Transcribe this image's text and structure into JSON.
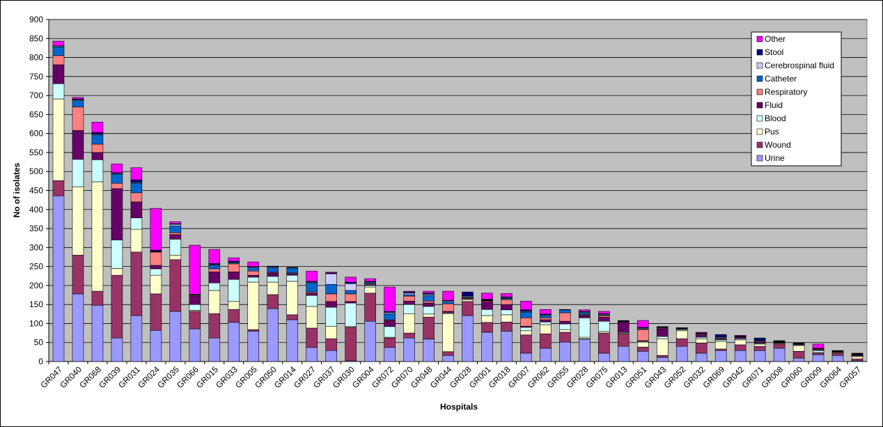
{
  "chart_data": {
    "type": "stacked-bar",
    "x_label": "Hospitals",
    "y_label": "No of isolates",
    "categories": [
      "GR047",
      "GR040",
      "GR068",
      "GR039",
      "GR031",
      "GR024",
      "GR035",
      "GR066",
      "GR015",
      "GR033",
      "GR005",
      "GR050",
      "GR014",
      "GR027",
      "GR037",
      "GR030",
      "GR004",
      "GR072",
      "GR070",
      "GR048",
      "GR044",
      "GR028",
      "GR001",
      "GR018",
      "GR007",
      "GR062",
      "GR055",
      "GR028",
      "GR075",
      "GR013",
      "GR051",
      "GR043",
      "GR052",
      "GR032",
      "GR069",
      "GR042",
      "GR071",
      "GR008",
      "GR060",
      "GR009",
      "GR064",
      "GR057"
    ],
    "series": [
      {
        "name": "Urine",
        "color": "#9999ff",
        "values": [
          436,
          178,
          148,
          62,
          121,
          82,
          132,
          86,
          62,
          103,
          80,
          139,
          110,
          37,
          29,
          2,
          106,
          37,
          62,
          59,
          16,
          121,
          77,
          80,
          22,
          35,
          51,
          59,
          22,
          40,
          27,
          11,
          40,
          22,
          29,
          29,
          29,
          35,
          9,
          18,
          16,
          2
        ]
      },
      {
        "name": "Wound",
        "color": "#993366",
        "values": [
          40,
          102,
          37,
          165,
          167,
          96,
          136,
          46,
          64,
          34,
          4,
          37,
          13,
          51,
          31,
          88,
          74,
          25,
          13,
          58,
          10,
          37,
          26,
          24,
          48,
          38,
          26,
          1,
          53,
          33,
          11,
          5,
          20,
          27,
          4,
          15,
          11,
          11,
          18,
          4,
          6,
          5
        ]
      },
      {
        "name": "Pus",
        "color": "#ffffcc",
        "values": [
          215,
          180,
          288,
          18,
          60,
          49,
          12,
          3,
          61,
          21,
          125,
          33,
          88,
          57,
          33,
          2,
          16,
          2,
          51,
          8,
          100,
          5,
          18,
          19,
          11,
          24,
          7,
          4,
          4,
          2,
          13,
          44,
          21,
          11,
          20,
          13,
          6,
          2,
          15,
          2,
          2,
          6
        ]
      },
      {
        "name": "Blood",
        "color": "#ccffff",
        "values": [
          40,
          72,
          58,
          75,
          30,
          17,
          42,
          15,
          20,
          58,
          13,
          15,
          16,
          29,
          50,
          62,
          4,
          28,
          24,
          20,
          2,
          2,
          16,
          13,
          9,
          7,
          15,
          51,
          27,
          2,
          2,
          6,
          3,
          4,
          4,
          3,
          2,
          1,
          2,
          5,
          1,
          2
        ]
      },
      {
        "name": "Fluid",
        "color": "#660066",
        "values": [
          50,
          76,
          19,
          135,
          42,
          9,
          12,
          22,
          29,
          20,
          5,
          9,
          4,
          6,
          15,
          4,
          2,
          16,
          9,
          9,
          4,
          2,
          21,
          14,
          3,
          6,
          7,
          6,
          11,
          27,
          2,
          20,
          1,
          6,
          2,
          4,
          3,
          2,
          2,
          2,
          1,
          2
        ]
      },
      {
        "name": "Respiratory",
        "color": "#ff8080",
        "values": [
          24,
          62,
          22,
          14,
          24,
          35,
          5,
          2,
          8,
          21,
          11,
          2,
          2,
          3,
          20,
          20,
          2,
          2,
          13,
          5,
          20,
          2,
          2,
          13,
          22,
          5,
          22,
          2,
          4,
          1,
          29,
          2,
          1,
          2,
          2,
          1,
          2,
          1,
          1,
          2,
          1,
          1
        ]
      },
      {
        "name": "Catheter",
        "color": "#0066cc",
        "values": [
          23,
          16,
          24,
          24,
          25,
          1,
          18,
          1,
          9,
          2,
          8,
          11,
          13,
          24,
          25,
          9,
          3,
          16,
          4,
          15,
          6,
          2,
          1,
          3,
          15,
          6,
          8,
          5,
          2,
          1,
          2,
          2,
          1,
          1,
          2,
          1,
          2,
          1,
          1,
          1,
          1,
          1
        ]
      },
      {
        "name": "Cerebrospinal fluid",
        "color": "#ccccff",
        "values": [
          2,
          2,
          2,
          2,
          2,
          1,
          4,
          1,
          2,
          2,
          2,
          2,
          1,
          2,
          28,
          18,
          2,
          3,
          4,
          3,
          2,
          2,
          1,
          2,
          2,
          2,
          0,
          2,
          2,
          1,
          2,
          1,
          1,
          1,
          2,
          1,
          1,
          1,
          0,
          1,
          0,
          0
        ]
      },
      {
        "name": "Stool",
        "color": "#000080",
        "values": [
          1,
          3,
          5,
          2,
          7,
          3,
          2,
          1,
          3,
          3,
          2,
          3,
          1,
          2,
          2,
          4,
          2,
          3,
          3,
          3,
          1,
          10,
          2,
          2,
          4,
          2,
          1,
          2,
          1,
          1,
          2,
          1,
          1,
          1,
          6,
          0,
          6,
          1,
          1,
          0,
          1,
          2
        ]
      },
      {
        "name": "Other",
        "color": "#ff00ff",
        "values": [
          12,
          4,
          27,
          23,
          32,
          110,
          5,
          129,
          37,
          9,
          12,
          0,
          0,
          27,
          2,
          13,
          7,
          64,
          2,
          5,
          24,
          0,
          16,
          9,
          23,
          12,
          0,
          4,
          6,
          0,
          18,
          0,
          0,
          2,
          0,
          2,
          0,
          0,
          0,
          11,
          0,
          1
        ]
      }
    ],
    "ylim": [
      0,
      900
    ],
    "yticks": [
      0,
      50,
      100,
      150,
      200,
      250,
      300,
      350,
      400,
      450,
      500,
      550,
      600,
      650,
      700,
      750,
      800,
      850,
      900
    ],
    "grid": true,
    "legend": "top-right",
    "plot_background": "#c0c0c0"
  }
}
